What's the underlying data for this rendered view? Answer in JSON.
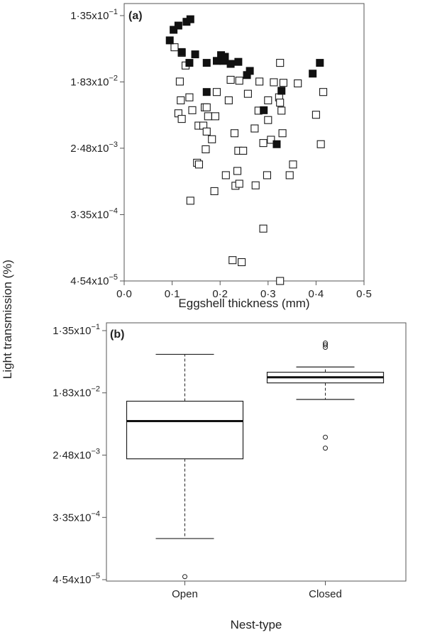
{
  "figure": {
    "shared_ylabel": "Light transmission (%)"
  },
  "chart_data": [
    {
      "type": "scatter",
      "panel_label": "(a)",
      "xlabel": "Eggshell thickness (mm)",
      "ylabel": "Light transmission (%)",
      "xlim": [
        0,
        0.5
      ],
      "x_ticks": [
        0,
        0.1,
        0.2,
        0.3,
        0.4,
        0.5
      ],
      "x_tick_labels": [
        "0·0",
        "0·1",
        "0·2",
        "0·3",
        "0·4",
        "0·5"
      ],
      "y_scale": "log",
      "ylim": [
        4.54e-05,
        0.135
      ],
      "y_ticks": [
        4.54e-05,
        0.000335,
        0.00248,
        0.0183,
        0.135
      ],
      "y_tick_labels": [
        "4·54x10",
        "3·35x10",
        "2·48x10",
        "1·83x10",
        "1·35x10"
      ],
      "y_tick_exponents": [
        "−5",
        "−4",
        "−3",
        "−2",
        "−1"
      ],
      "grid": false,
      "series": [
        {
          "marker": "filled-square",
          "points": [
            [
              0.095,
              0.064
            ],
            [
              0.103,
              0.088
            ],
            [
              0.113,
              0.1
            ],
            [
              0.12,
              0.045
            ],
            [
              0.13,
              0.112
            ],
            [
              0.138,
              0.121
            ],
            [
              0.136,
              0.0325
            ],
            [
              0.148,
              0.042
            ],
            [
              0.172,
              0.0325
            ],
            [
              0.172,
              0.0135
            ],
            [
              0.193,
              0.0345
            ],
            [
              0.202,
              0.041
            ],
            [
              0.207,
              0.0345
            ],
            [
              0.21,
              0.039
            ],
            [
              0.222,
              0.0315
            ],
            [
              0.238,
              0.0335
            ],
            [
              0.256,
              0.0225
            ],
            [
              0.262,
              0.0255
            ],
            [
              0.291,
              0.0078
            ],
            [
              0.318,
              0.0028
            ],
            [
              0.328,
              0.014
            ],
            [
              0.393,
              0.0235
            ],
            [
              0.408,
              0.0325
            ]
          ]
        },
        {
          "marker": "open-square",
          "points": [
            [
              0.105,
              0.052
            ],
            [
              0.12,
              0.044
            ],
            [
              0.116,
              0.0185
            ],
            [
              0.118,
              0.0105
            ],
            [
              0.113,
              0.0071
            ],
            [
              0.12,
              0.006
            ],
            [
              0.128,
              0.03
            ],
            [
              0.136,
              0.0115
            ],
            [
              0.142,
              0.0078
            ],
            [
              0.155,
              0.0049
            ],
            [
              0.152,
              0.0016
            ],
            [
              0.156,
              0.00152
            ],
            [
              0.138,
              0.00051
            ],
            [
              0.165,
              0.0049
            ],
            [
              0.168,
              0.0085
            ],
            [
              0.17,
              0.0024
            ],
            [
              0.172,
              0.0041
            ],
            [
              0.172,
              0.0085
            ],
            [
              0.175,
              0.0065
            ],
            [
              0.183,
              0.00325
            ],
            [
              0.19,
              0.0065
            ],
            [
              0.188,
              0.00068
            ],
            [
              0.193,
              0.0135
            ],
            [
              0.212,
              0.0011
            ],
            [
              0.218,
              0.0105
            ],
            [
              0.222,
              0.0195
            ],
            [
              0.23,
              0.0039
            ],
            [
              0.236,
              0.00125
            ],
            [
              0.232,
              0.0008
            ],
            [
              0.24,
              0.00085
            ],
            [
              0.238,
              0.0023
            ],
            [
              0.24,
              0.019
            ],
            [
              0.248,
              0.0023
            ],
            [
              0.245,
              8e-05
            ],
            [
              0.258,
              0.0128
            ],
            [
              0.272,
              0.0045
            ],
            [
              0.274,
              0.00081
            ],
            [
              0.282,
              0.0185
            ],
            [
              0.28,
              0.0077
            ],
            [
              0.29,
              0.0029
            ],
            [
              0.29,
              0.00022
            ],
            [
              0.226,
              8.5e-05
            ],
            [
              0.3,
              0.0105
            ],
            [
              0.3,
              0.0058
            ],
            [
              0.298,
              0.0011
            ],
            [
              0.306,
              0.0032
            ],
            [
              0.312,
              0.0181
            ],
            [
              0.323,
              0.0115
            ],
            [
              0.325,
              0.0098
            ],
            [
              0.328,
              0.0077
            ],
            [
              0.325,
              0.0325
            ],
            [
              0.33,
              0.0039
            ],
            [
              0.332,
              0.0178
            ],
            [
              0.345,
              0.0011
            ],
            [
              0.352,
              0.00152
            ],
            [
              0.362,
              0.0175
            ],
            [
              0.4,
              0.0068
            ],
            [
              0.41,
              0.0028
            ],
            [
              0.415,
              0.0135
            ],
            [
              0.325,
              4.54e-05
            ]
          ]
        }
      ]
    },
    {
      "type": "box",
      "panel_label": "(b)",
      "xlabel": "Nest-type",
      "ylabel": "Light transmission (%)",
      "categories": [
        "Open",
        "Closed"
      ],
      "y_scale": "log",
      "ylim": [
        4.54e-05,
        0.135
      ],
      "y_ticks": [
        4.54e-05,
        0.000335,
        0.00248,
        0.0183,
        0.135
      ],
      "y_tick_labels": [
        "4·54x10",
        "3·35x10",
        "2·48x10",
        "1·83x10",
        "1·35x10"
      ],
      "y_tick_exponents": [
        "−5",
        "−4",
        "−3",
        "−2",
        "−1"
      ],
      "grid": false,
      "boxes": [
        {
          "category": "Open",
          "whisker_low": 0.00017,
          "q1": 0.0022,
          "median": 0.0074,
          "q3": 0.014,
          "whisker_high": 0.063,
          "outliers": [
            5e-05
          ]
        },
        {
          "category": "Closed",
          "whisker_low": 0.0148,
          "q1": 0.0252,
          "median": 0.0302,
          "q3": 0.0355,
          "whisker_high": 0.042,
          "outliers": [
            0.0905,
            0.0853,
            0.079,
            0.0044,
            0.0031
          ]
        }
      ]
    }
  ]
}
